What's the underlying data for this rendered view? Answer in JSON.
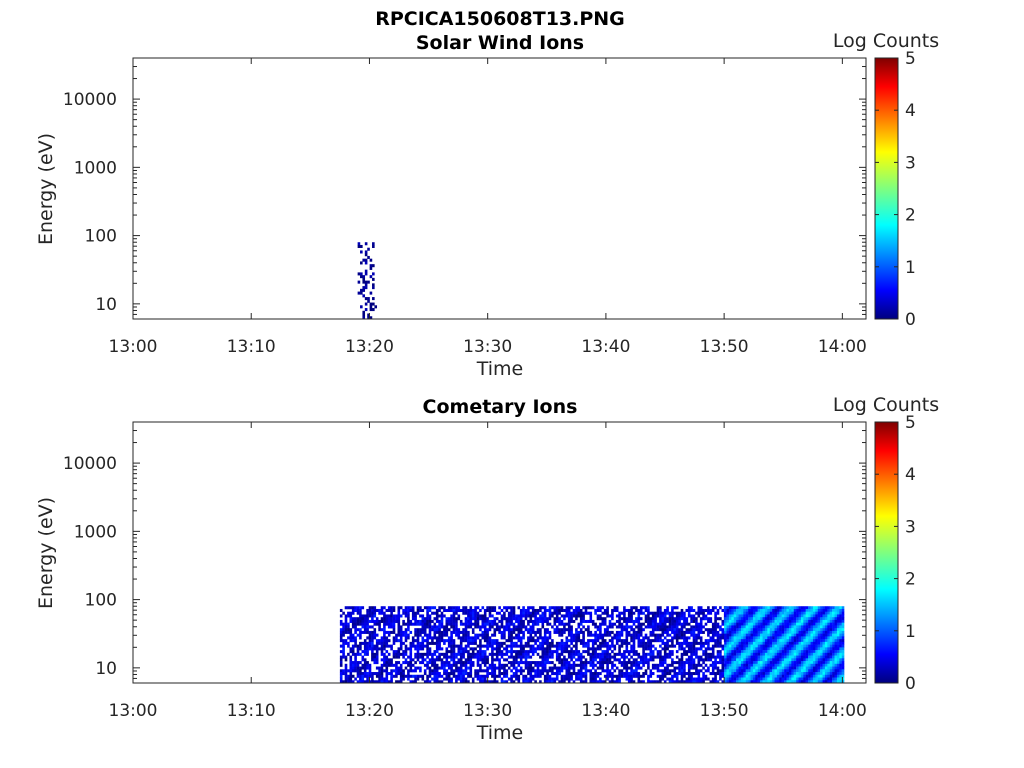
{
  "figure_title": "RPCICA150608T13.PNG",
  "chart_data": [
    {
      "type": "heatmap",
      "title": "Solar Wind Ions",
      "xlabel": "Time",
      "ylabel": "Energy (eV)",
      "x_range": [
        "13:00",
        "14:02"
      ],
      "x_ticks": [
        "13:00",
        "13:10",
        "13:20",
        "13:30",
        "13:40",
        "13:50",
        "14:00"
      ],
      "y_scale": "log",
      "y_range": [
        6,
        40000
      ],
      "y_ticks": [
        "10",
        "100",
        "1000",
        "10000"
      ],
      "colorbar": {
        "label": "Log Counts",
        "ticks": [
          "0",
          "1",
          "2",
          "3",
          "4",
          "5"
        ],
        "range": [
          0,
          5
        ],
        "colormap": "jet"
      },
      "regions": [
        {
          "t_start": "13:19",
          "t_end": "13:20.5",
          "e_min": 6,
          "e_max": 80,
          "log_counts": 0.1,
          "sparse": true
        }
      ]
    },
    {
      "type": "heatmap",
      "title": "Cometary Ions",
      "xlabel": "Time",
      "ylabel": "Energy (eV)",
      "x_range": [
        "13:00",
        "14:02"
      ],
      "x_ticks": [
        "13:00",
        "13:10",
        "13:20",
        "13:30",
        "13:40",
        "13:50",
        "14:00"
      ],
      "y_scale": "log",
      "y_range": [
        6,
        40000
      ],
      "y_ticks": [
        "10",
        "100",
        "1000",
        "10000"
      ],
      "colorbar": {
        "label": "Log Counts",
        "ticks": [
          "0",
          "1",
          "2",
          "3",
          "4",
          "5"
        ],
        "range": [
          0,
          5
        ],
        "colormap": "jet"
      },
      "regions": [
        {
          "t_start": "13:17.5",
          "t_end": "13:50",
          "e_min": 6,
          "e_max": 80,
          "log_counts": 0.5,
          "sparse": true
        },
        {
          "t_start": "13:50",
          "t_end": "14:00",
          "e_min": 6,
          "e_max": 80,
          "log_counts": 1.4,
          "sparse": false
        }
      ]
    }
  ]
}
